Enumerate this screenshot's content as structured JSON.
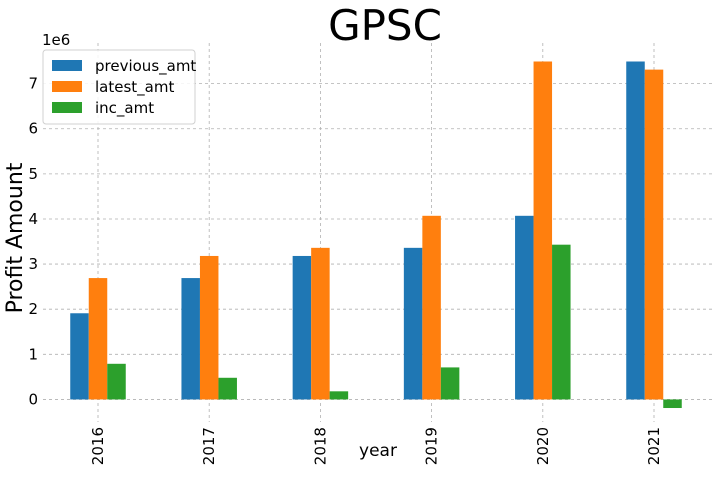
{
  "chart_data": {
    "type": "bar",
    "title": "GPSC",
    "xlabel": "year",
    "ylabel": "Profit Amount",
    "scale_label": "1e6",
    "categories": [
      "2016",
      "2017",
      "2018",
      "2019",
      "2020",
      "2021"
    ],
    "series": [
      {
        "name": "previous_amt",
        "color": "#1f77b4",
        "values": [
          1910000,
          2690000,
          3180000,
          3360000,
          4070000,
          7490000
        ]
      },
      {
        "name": "latest_amt",
        "color": "#ff7f0e",
        "values": [
          2690000,
          3180000,
          3360000,
          4070000,
          7490000,
          7310000
        ]
      },
      {
        "name": "inc_amt",
        "color": "#2ca02c",
        "values": [
          790000,
          480000,
          180000,
          710000,
          3430000,
          -190000
        ]
      }
    ],
    "ylim": [
      -500000,
      7900000
    ],
    "yticks": [
      0,
      1000000,
      2000000,
      3000000,
      4000000,
      5000000,
      6000000,
      7000000
    ],
    "ytick_labels": [
      "0",
      "1",
      "2",
      "3",
      "4",
      "5",
      "6",
      "7"
    ],
    "grid": true,
    "legend_position": "top-left"
  }
}
